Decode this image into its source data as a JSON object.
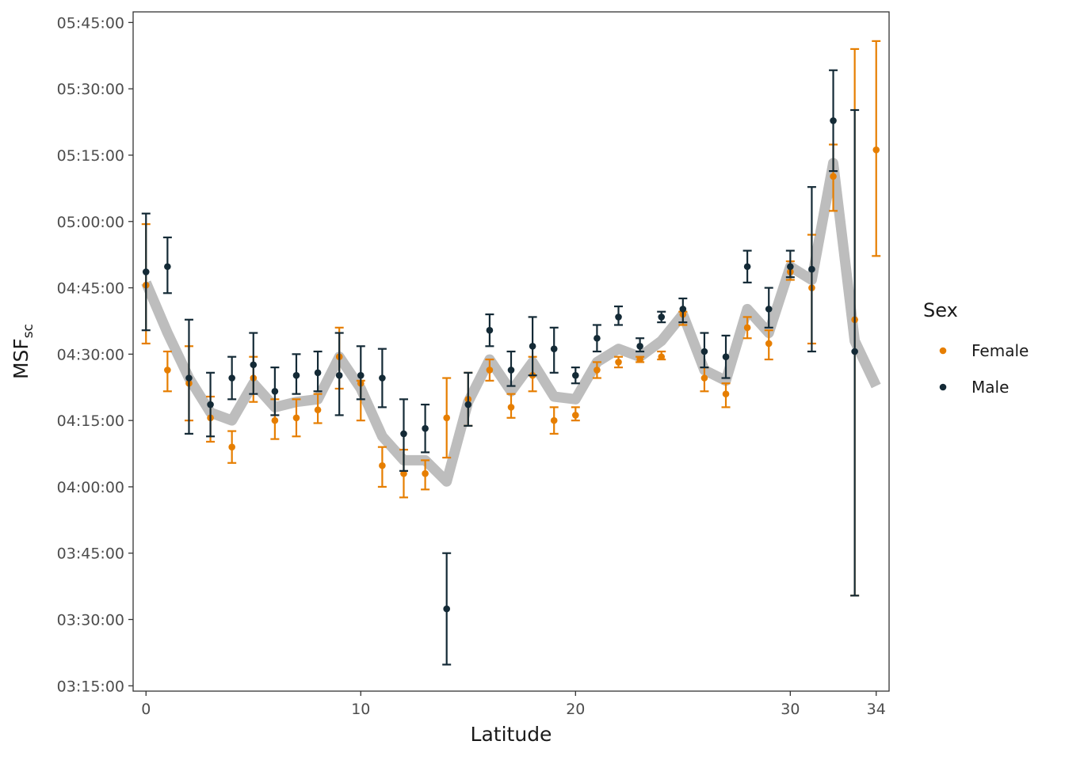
{
  "chart_data": {
    "type": "scatter",
    "title": "",
    "xlabel": "Latitude",
    "ylabel": "MSF",
    "ylabel_subscript": "sc",
    "xlim": [
      -0.6,
      34.6
    ],
    "x_ticks": [
      0,
      10,
      20,
      30,
      34
    ],
    "x_tick_labels": [
      "0",
      "10",
      "20",
      "30",
      "34"
    ],
    "ylim": [
      3.23,
      5.79
    ],
    "y_ticks": [
      3.25,
      3.5,
      3.75,
      4.0,
      4.25,
      4.5,
      4.75,
      5.0,
      5.25,
      5.5,
      5.75
    ],
    "y_tick_labels": [
      "03:15:00",
      "03:30:00",
      "03:45:00",
      "04:00:00",
      "04:15:00",
      "04:30:00",
      "04:45:00",
      "05:00:00",
      "05:15:00",
      "05:30:00",
      "05:45:00"
    ],
    "grid": false,
    "legend": {
      "title": "Sex",
      "position": "right",
      "entries": [
        {
          "label": "Female",
          "color": "#e67e00"
        },
        {
          "label": "Male",
          "color": "#142a36"
        }
      ]
    },
    "trend_line": {
      "color": "#bdbdbd",
      "x": [
        0,
        1,
        2,
        3,
        4,
        5,
        6,
        7,
        8,
        9,
        10,
        11,
        12,
        13,
        14,
        15,
        16,
        17,
        18,
        19,
        20,
        21,
        22,
        23,
        24,
        25,
        26,
        27,
        28,
        29,
        30,
        31,
        32,
        33,
        34
      ],
      "y": [
        4.77,
        4.58,
        4.41,
        4.28,
        4.25,
        4.39,
        4.3,
        4.32,
        4.33,
        4.49,
        4.37,
        4.19,
        4.1,
        4.1,
        4.02,
        4.32,
        4.48,
        4.36,
        4.47,
        4.34,
        4.33,
        4.47,
        4.52,
        4.49,
        4.55,
        4.65,
        4.44,
        4.4,
        4.67,
        4.58,
        4.83,
        4.78,
        5.22,
        4.55,
        4.38
      ]
    },
    "series": [
      {
        "name": "Female",
        "color": "#e67e00",
        "x": [
          0,
          1,
          2,
          3,
          4,
          5,
          6,
          7,
          8,
          9,
          10,
          11,
          12,
          13,
          14,
          15,
          16,
          17,
          18,
          19,
          20,
          21,
          22,
          23,
          24,
          25,
          26,
          27,
          28,
          29,
          30,
          31,
          32,
          33,
          34
        ],
        "y": [
          4.76,
          4.44,
          4.39,
          4.26,
          4.15,
          4.41,
          4.25,
          4.26,
          4.29,
          4.49,
          4.39,
          4.08,
          4.05,
          4.05,
          4.26,
          4.33,
          4.44,
          4.3,
          4.42,
          4.25,
          4.27,
          4.44,
          4.47,
          4.48,
          4.49,
          4.65,
          4.41,
          4.35,
          4.6,
          4.54,
          4.81,
          4.75,
          5.17,
          4.63,
          5.27
        ],
        "err_low": [
          4.54,
          4.36,
          4.25,
          4.17,
          4.09,
          4.32,
          4.18,
          4.19,
          4.24,
          4.37,
          4.25,
          4.0,
          3.96,
          3.99,
          4.11,
          4.23,
          4.4,
          4.26,
          4.36,
          4.2,
          4.25,
          4.41,
          4.45,
          4.47,
          4.48,
          4.61,
          4.36,
          4.3,
          4.56,
          4.48,
          4.78,
          4.54,
          5.04,
          3.59,
          4.87
        ],
        "err_high": [
          4.99,
          4.51,
          4.53,
          4.34,
          4.21,
          4.49,
          4.33,
          4.33,
          4.35,
          4.6,
          4.4,
          4.15,
          4.14,
          4.1,
          4.41,
          4.43,
          4.48,
          4.35,
          4.49,
          4.3,
          4.3,
          4.47,
          4.49,
          4.49,
          4.51,
          4.66,
          4.45,
          4.39,
          4.64,
          4.59,
          4.85,
          4.95,
          5.29,
          5.65,
          5.68
        ]
      },
      {
        "name": "Male",
        "color": "#142a36",
        "x": [
          0,
          1,
          2,
          3,
          4,
          5,
          6,
          7,
          8,
          9,
          10,
          11,
          12,
          13,
          14,
          15,
          16,
          17,
          18,
          19,
          20,
          21,
          22,
          23,
          24,
          25,
          26,
          27,
          28,
          29,
          30,
          31,
          32,
          33
        ],
        "y": [
          4.81,
          4.83,
          4.41,
          4.31,
          4.41,
          4.46,
          4.36,
          4.42,
          4.43,
          4.42,
          4.42,
          4.41,
          4.2,
          4.22,
          3.54,
          4.31,
          4.59,
          4.44,
          4.53,
          4.52,
          4.42,
          4.56,
          4.64,
          4.53,
          4.64,
          4.67,
          4.51,
          4.49,
          4.83,
          4.67,
          4.83,
          4.82,
          5.38,
          4.51
        ],
        "err_low": [
          4.59,
          4.73,
          4.2,
          4.19,
          4.33,
          4.35,
          4.27,
          4.35,
          4.36,
          4.27,
          4.33,
          4.3,
          4.06,
          4.13,
          3.33,
          4.23,
          4.53,
          4.38,
          4.42,
          4.43,
          4.39,
          4.51,
          4.61,
          4.51,
          4.62,
          4.62,
          4.45,
          4.41,
          4.77,
          4.6,
          4.79,
          4.51,
          5.19,
          3.59
        ],
        "err_high": [
          5.03,
          4.94,
          4.63,
          4.43,
          4.49,
          4.58,
          4.45,
          4.5,
          4.51,
          4.58,
          4.53,
          4.52,
          4.33,
          4.31,
          3.75,
          4.43,
          4.65,
          4.51,
          4.64,
          4.6,
          4.45,
          4.61,
          4.68,
          4.56,
          4.66,
          4.71,
          4.58,
          4.57,
          4.89,
          4.75,
          4.89,
          5.13,
          5.57,
          5.42
        ]
      }
    ]
  }
}
